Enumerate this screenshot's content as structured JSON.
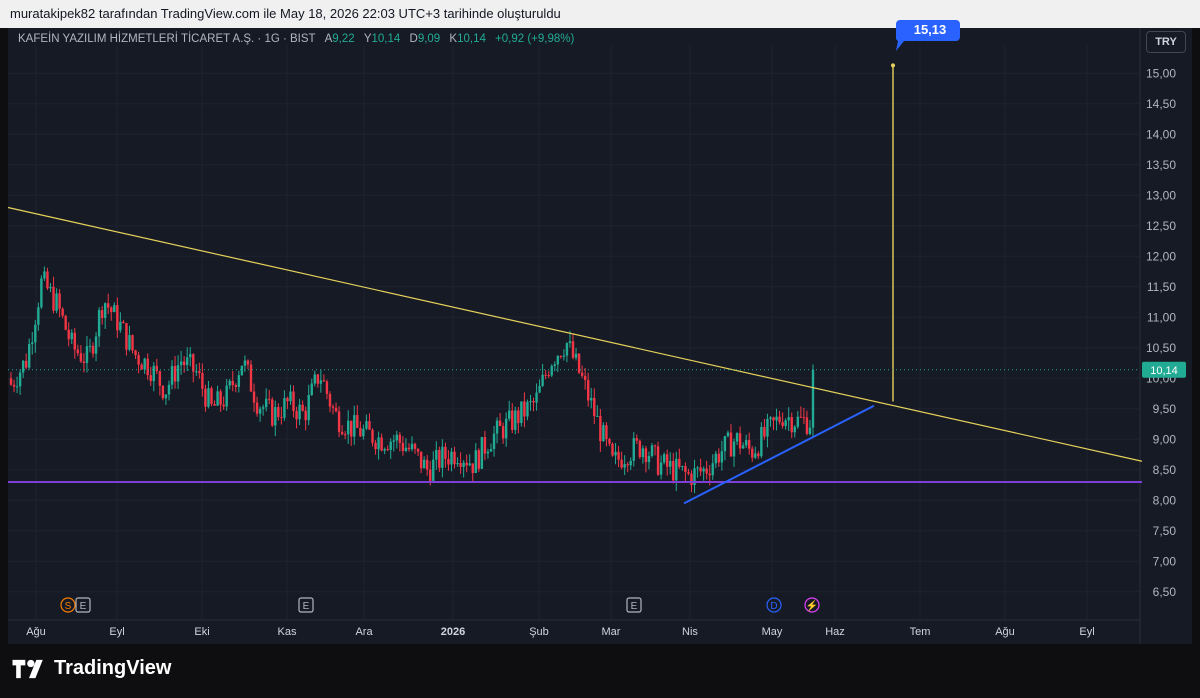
{
  "header": {
    "attribution": "muratakipek82 tarafından TradingView.com ile May 18, 2026 22:03 UTC+3 tarihinde oluşturuldu"
  },
  "legend": {
    "symbol": "KAFEİN YAZILIM HİZMETLERİ TİCARET A.Ş. · 1G · BIST",
    "open_label": "A",
    "open": "9,22",
    "high_label": "Y",
    "high": "10,14",
    "low_label": "D",
    "low": "9,09",
    "close_label": "K",
    "close": "10,14",
    "change": "+0,92 (+9,98%)"
  },
  "currency": "TRY",
  "brand": {
    "name": "TradingView",
    "logo_icon": "tradingview-logo-icon"
  },
  "colors": {
    "up": "#22ab94",
    "down": "#f23645",
    "trendline": "#e6d15a",
    "support": "#7e3fd6",
    "channel": "#2962ff",
    "target": "#2962ff"
  },
  "chart_data": {
    "type": "candlestick",
    "y_axis": {
      "min": 6.3,
      "max": 15.3,
      "ticks": [
        "6,50",
        "7,00",
        "7,50",
        "8,00",
        "8,50",
        "9,00",
        "9,50",
        "10,00",
        "10,50",
        "11,00",
        "11,50",
        "12,00",
        "12,50",
        "13,00",
        "13,50",
        "14,00",
        "14,50",
        "15,00"
      ]
    },
    "x_axis": {
      "labels": [
        "Ağu",
        "Eyl",
        "Eki",
        "Kas",
        "Ara",
        "2026",
        "Şub",
        "Mar",
        "Nis",
        "May",
        "Haz",
        "Tem",
        "Ağu",
        "Eyl"
      ]
    },
    "last_price": "10,14",
    "target_label": "15,13",
    "events": [
      {
        "type": "split-dividend",
        "icon": "split-dividend-icon",
        "glyph": "S",
        "month": "Ağu"
      },
      {
        "type": "earnings",
        "icon": "earnings-icon",
        "glyph": "E",
        "month": "Ağu"
      },
      {
        "type": "earnings",
        "icon": "earnings-icon",
        "glyph": "E",
        "month": "Kas"
      },
      {
        "type": "earnings",
        "icon": "earnings-icon",
        "glyph": "E",
        "month": "Mar"
      },
      {
        "type": "dividend",
        "icon": "dividend-icon",
        "glyph": "D",
        "month": "May"
      },
      {
        "type": "news",
        "icon": "lightning-icon",
        "glyph": "⚡",
        "month": "May"
      }
    ],
    "close_path": [
      [
        9.9,
        10.1
      ],
      [
        10.3,
        10.2
      ],
      [
        11.6,
        11.4
      ],
      [
        11.2,
        11.3
      ],
      [
        10.5,
        10.4
      ],
      [
        10.3,
        10.6
      ],
      [
        11.3,
        11.1
      ],
      [
        10.9,
        10.5
      ],
      [
        10.4,
        10.1
      ],
      [
        10.2,
        9.4
      ],
      [
        9.8,
        9.8
      ],
      [
        10.3,
        10.4
      ],
      [
        10.1,
        9.8
      ],
      [
        9.5,
        9.3
      ],
      [
        9.7,
        9.9
      ],
      [
        10.3,
        10.3
      ],
      [
        9.6,
        9.5
      ],
      [
        9.4,
        9.4
      ],
      [
        9.6,
        9.6
      ],
      [
        9.4,
        9.4
      ],
      [
        10.1,
        10.1
      ],
      [
        9.4,
        9.2
      ],
      [
        9.2,
        9.1
      ],
      [
        9.1,
        9.1
      ],
      [
        9.0,
        8.9
      ],
      [
        9.0,
        9.0
      ],
      [
        8.8,
        8.6
      ],
      [
        8.5,
        8.5
      ],
      [
        8.7,
        8.7
      ],
      [
        8.8,
        8.8
      ],
      [
        8.6,
        8.6
      ],
      [
        9.0,
        9.0
      ],
      [
        9.2,
        9.3
      ],
      [
        9.4,
        9.5
      ],
      [
        9.6,
        9.5
      ],
      [
        10.3,
        10.5
      ],
      [
        10.6,
        10.6
      ],
      [
        10.0,
        9.7
      ],
      [
        9.3,
        9.2
      ],
      [
        8.6,
        8.4
      ],
      [
        8.8,
        8.9
      ],
      [
        8.9,
        8.7
      ],
      [
        8.6,
        8.5
      ],
      [
        8.5,
        8.2
      ],
      [
        8.4,
        8.4
      ],
      [
        8.5,
        8.6
      ],
      [
        8.8,
        8.9
      ],
      [
        9.0,
        9.0
      ],
      [
        8.8,
        8.9
      ],
      [
        9.1,
        9.3
      ],
      [
        9.4,
        9.4
      ],
      [
        9.3,
        9.2
      ],
      [
        9.3,
        10.14
      ]
    ],
    "resistance_line": {
      "from": {
        "month": "Tem (prev yr)",
        "price": 12.8
      },
      "to": {
        "month": "Eyl",
        "price": 8.7
      }
    },
    "support_line": {
      "price": 8.3
    },
    "ascending_line": {
      "from": {
        "month": "Nis",
        "price": 7.95
      },
      "to": {
        "month": "Haz",
        "price": 9.55
      }
    },
    "target_projection": {
      "base_price": 9.62,
      "target_price": 15.13
    }
  }
}
